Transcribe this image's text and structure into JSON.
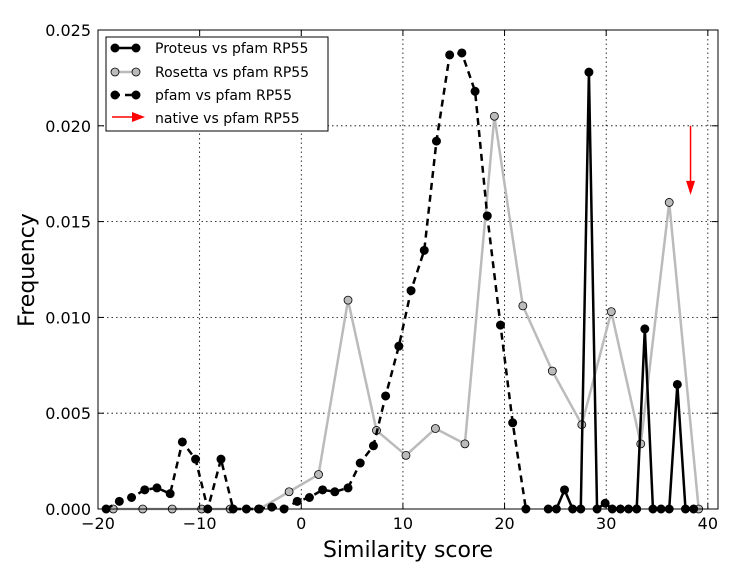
{
  "chart_data": {
    "type": "line",
    "xlabel": "Similarity score",
    "ylabel": "Frequency",
    "xlim": [
      -20,
      41
    ],
    "ylim": [
      0,
      0.025
    ],
    "grid": true,
    "legend_placement": "top-left",
    "xticks": [
      -20,
      -10,
      0,
      10,
      20,
      30,
      40
    ],
    "xtick_labels": [
      "−20",
      "−10",
      "0",
      "10",
      "20",
      "30",
      "40"
    ],
    "yticks": [
      0,
      0.005,
      0.01,
      0.015,
      0.02,
      0.025
    ],
    "ytick_labels": [
      "0.000",
      "0.005",
      "0.010",
      "0.015",
      "0.020",
      "0.025"
    ],
    "series": [
      {
        "name": "Proteus vs pfam RP55",
        "color": "#000000",
        "marker_fill": "#000000",
        "dash": "solid",
        "x": [
          24.3,
          25.1,
          25.9,
          26.7,
          27.5,
          28.3,
          29.1,
          29.9,
          30.6,
          31.4,
          32.2,
          33.0,
          33.8,
          34.6,
          35.4,
          36.2,
          37.0,
          37.8,
          38.6
        ],
        "y": [
          0,
          0,
          0.001,
          0,
          0,
          0.0228,
          0,
          0.0003,
          0,
          0,
          0,
          0,
          0.0094,
          0,
          0,
          0,
          0.0065,
          0,
          0
        ]
      },
      {
        "name": "Rosetta vs pfam RP55",
        "color": "#bbbbbb",
        "marker_fill": "#bbbbbb",
        "dash": "solid",
        "x": [
          -18.5,
          -15.6,
          -12.7,
          -9.8,
          -7.0,
          -4.1,
          -1.2,
          1.7,
          4.6,
          7.4,
          10.3,
          13.2,
          16.1,
          19.0,
          21.8,
          24.7,
          27.6,
          30.5,
          33.4,
          36.2,
          39.1
        ],
        "y": [
          0,
          0,
          0,
          0,
          0,
          0,
          0.0009,
          0.0018,
          0.0109,
          0.0041,
          0.0028,
          0.0042,
          0.0034,
          0.0205,
          0.0106,
          0.0072,
          0.0044,
          0.0103,
          0.0034,
          0.016,
          0
        ]
      },
      {
        "name": "pfam vs pfam RP55",
        "color": "#000000",
        "marker_fill": "#000000",
        "dash": "dashed",
        "x": [
          -19.2,
          -17.9,
          -16.7,
          -15.4,
          -14.2,
          -12.9,
          -11.7,
          -10.4,
          -9.2,
          -7.9,
          -6.7,
          -5.4,
          -4.2,
          -2.9,
          -1.7,
          -0.4,
          0.8,
          2.1,
          3.3,
          4.6,
          5.8,
          7.1,
          8.3,
          9.6,
          10.8,
          12.1,
          13.3,
          14.6,
          15.8,
          17.1,
          18.3,
          19.6,
          20.8,
          22.1
        ],
        "y": [
          0,
          0.0004,
          0.0006,
          0.001,
          0.0011,
          0.0008,
          0.0035,
          0.0026,
          0,
          0.0026,
          0,
          0,
          0,
          0.0001,
          0,
          0.0004,
          0.0006,
          0.001,
          0.0009,
          0.0011,
          0.0024,
          0.0033,
          0.0059,
          0.0085,
          0.0114,
          0.0135,
          0.0192,
          0.0237,
          0.0238,
          0.0218,
          0.0153,
          0.0096,
          0.0045,
          0
        ]
      },
      {
        "name": "native vs pfam RP55",
        "color": "#ff0000",
        "type": "arrow",
        "x": 38.3,
        "y_from": 0.02,
        "y_to": 0.0165
      }
    ]
  }
}
